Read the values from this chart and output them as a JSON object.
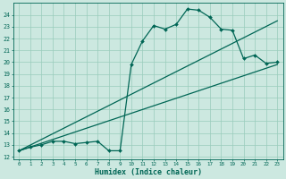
{
  "xlabel": "Humidex (Indice chaleur)",
  "bg_color": "#cce8e0",
  "grid_color": "#99ccbb",
  "line_color": "#006655",
  "xlim": [
    -0.5,
    23.5
  ],
  "ylim": [
    11.8,
    25.0
  ],
  "xticks": [
    0,
    1,
    2,
    3,
    4,
    5,
    6,
    7,
    8,
    9,
    10,
    11,
    12,
    13,
    14,
    15,
    16,
    17,
    18,
    19,
    20,
    21,
    22,
    23
  ],
  "yticks": [
    12,
    13,
    14,
    15,
    16,
    17,
    18,
    19,
    20,
    21,
    22,
    23,
    24
  ],
  "curve1_x": [
    0,
    1,
    2,
    3,
    4,
    5,
    6,
    7,
    8,
    9,
    10,
    11,
    12,
    13,
    14,
    15,
    16,
    17,
    18,
    19,
    20,
    21,
    22,
    23
  ],
  "curve1_y": [
    12.5,
    12.8,
    13.0,
    13.3,
    13.3,
    13.1,
    13.2,
    13.3,
    12.5,
    12.5,
    19.8,
    21.8,
    23.1,
    22.8,
    23.2,
    24.5,
    24.4,
    23.8,
    22.8,
    22.7,
    20.3,
    20.6,
    19.9,
    20.0
  ],
  "curve2_x": [
    0,
    23
  ],
  "curve2_y": [
    12.5,
    23.5
  ],
  "curve3_x": [
    0,
    23
  ],
  "curve3_y": [
    12.5,
    19.8
  ]
}
